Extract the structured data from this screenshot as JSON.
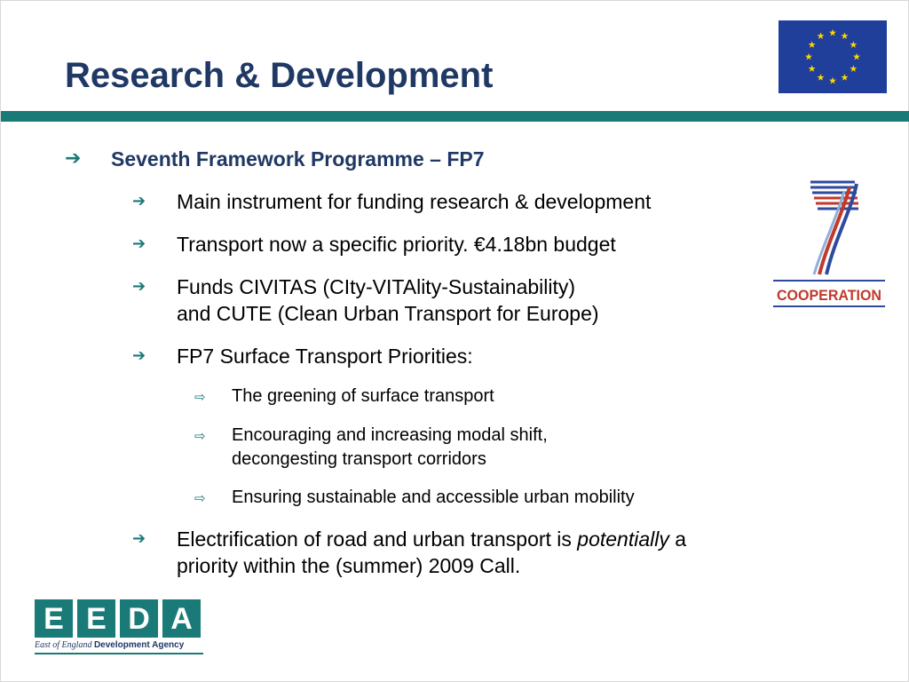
{
  "slide": {
    "title": "Research & Development",
    "bullets": {
      "l1": "Seventh Framework Programme – FP7",
      "b1": "Main instrument for funding research & development",
      "b2": "Transport now a specific priority. €4.18bn budget",
      "b3_line1": "Funds CIVITAS (CIty-VITAlity-Sustainability)",
      "b3_line2": "and CUTE (Clean Urban Transport for Europe)",
      "b4": "FP7 Surface Transport Priorities:",
      "s1": "The greening of surface transport",
      "s2_line1": "Encouraging and increasing modal shift,",
      "s2_line2": "decongesting transport corridors",
      "s3": "Ensuring sustainable and accessible urban mobility",
      "b5_pre": "Electrification of road and urban transport is ",
      "b5_em": "potentially",
      "b5_post": " a",
      "b5_line2": "priority within the (summer) 2009 Call."
    },
    "fp7_logo_label": "COOPERATION",
    "eeda": {
      "letters": [
        "E",
        "E",
        "D",
        "A"
      ],
      "tagline_italic": "East of England ",
      "tagline_bold": "Development Agency"
    },
    "colors": {
      "title": "#1f3864",
      "accent_teal": "#1a7a77",
      "eu_blue": "#1f3f9b",
      "eu_star": "#ffd700"
    }
  }
}
